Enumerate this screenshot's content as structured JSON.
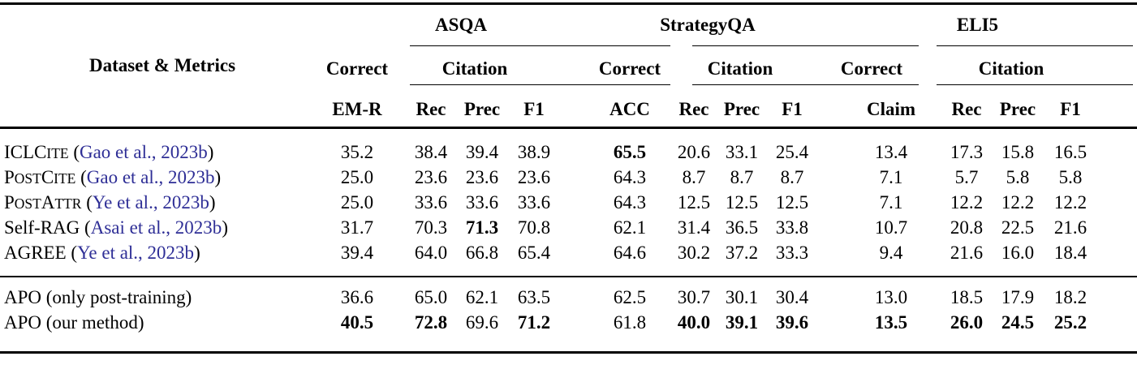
{
  "table": {
    "row_header": "Dataset & Metrics",
    "citation_color": "#2e2e96",
    "groups": [
      {
        "name": "ASQA",
        "sub": [
          "Correct",
          "Citation"
        ],
        "metrics": [
          "EM-R",
          "Rec",
          "Prec",
          "F1"
        ]
      },
      {
        "name": "StrategyQA",
        "sub": [
          "Correct",
          "Citation"
        ],
        "metrics": [
          "ACC",
          "Rec",
          "Prec",
          "F1"
        ]
      },
      {
        "name": "ELI5",
        "sub": [
          "Correct",
          "Citation"
        ],
        "metrics": [
          "Claim",
          "Rec",
          "Prec",
          "F1"
        ]
      }
    ],
    "sections": [
      {
        "rows": [
          {
            "method": [
              [
                "ICLC",
                0
              ],
              [
                "ITE",
                1
              ]
            ],
            "citation": "Gao et al., 2023b",
            "values": [
              "35.2",
              "38.4",
              "39.4",
              "38.9",
              "65.5",
              "20.6",
              "33.1",
              "25.4",
              "13.4",
              "17.3",
              "15.8",
              "16.5"
            ],
            "bold": [
              0,
              0,
              0,
              0,
              1,
              0,
              0,
              0,
              0,
              0,
              0,
              0
            ]
          },
          {
            "method": [
              [
                "P",
                0
              ],
              [
                "OST",
                1
              ],
              [
                "C",
                0
              ],
              [
                "ITE",
                1
              ]
            ],
            "citation": "Gao et al., 2023b",
            "values": [
              "25.0",
              "23.6",
              "23.6",
              "23.6",
              "64.3",
              "8.7",
              "8.7",
              "8.7",
              "7.1",
              "5.7",
              "5.8",
              "5.8"
            ],
            "bold": [
              0,
              0,
              0,
              0,
              0,
              0,
              0,
              0,
              0,
              0,
              0,
              0
            ]
          },
          {
            "method": [
              [
                "P",
                0
              ],
              [
                "OST",
                1
              ],
              [
                "A",
                0
              ],
              [
                "TTR",
                1
              ]
            ],
            "citation": "Ye et al., 2023b",
            "values": [
              "25.0",
              "33.6",
              "33.6",
              "33.6",
              "64.3",
              "12.5",
              "12.5",
              "12.5",
              "7.1",
              "12.2",
              "12.2",
              "12.2"
            ],
            "bold": [
              0,
              0,
              0,
              0,
              0,
              0,
              0,
              0,
              0,
              0,
              0,
              0
            ]
          },
          {
            "method": [
              [
                "Self-RAG",
                0
              ]
            ],
            "citation": "Asai et al., 2023b",
            "values": [
              "31.7",
              "70.3",
              "71.3",
              "70.8",
              "62.1",
              "31.4",
              "36.5",
              "33.8",
              "10.7",
              "20.8",
              "22.5",
              "21.6"
            ],
            "bold": [
              0,
              0,
              1,
              0,
              0,
              0,
              0,
              0,
              0,
              0,
              0,
              0
            ]
          },
          {
            "method": [
              [
                "AGREE",
                0
              ]
            ],
            "citation": "Ye et al., 2023b",
            "values": [
              "39.4",
              "64.0",
              "66.8",
              "65.4",
              "64.6",
              "30.2",
              "37.2",
              "33.3",
              "9.4",
              "21.6",
              "16.0",
              "18.4"
            ],
            "bold": [
              0,
              0,
              0,
              0,
              0,
              0,
              0,
              0,
              0,
              0,
              0,
              0
            ]
          }
        ]
      },
      {
        "rows": [
          {
            "method": [
              [
                "APO (only post-training)",
                0
              ]
            ],
            "citation": null,
            "values": [
              "36.6",
              "65.0",
              "62.1",
              "63.5",
              "62.5",
              "30.7",
              "30.1",
              "30.4",
              "13.0",
              "18.5",
              "17.9",
              "18.2"
            ],
            "bold": [
              0,
              0,
              0,
              0,
              0,
              0,
              0,
              0,
              0,
              0,
              0,
              0
            ]
          },
          {
            "method": [
              [
                "APO (our method)",
                0
              ]
            ],
            "citation": null,
            "values": [
              "40.5",
              "72.8",
              "69.6",
              "71.2",
              "61.8",
              "40.0",
              "39.1",
              "39.6",
              "13.5",
              "26.0",
              "24.5",
              "25.2"
            ],
            "bold": [
              1,
              1,
              0,
              1,
              0,
              1,
              1,
              1,
              1,
              1,
              1,
              1
            ]
          }
        ]
      }
    ]
  }
}
